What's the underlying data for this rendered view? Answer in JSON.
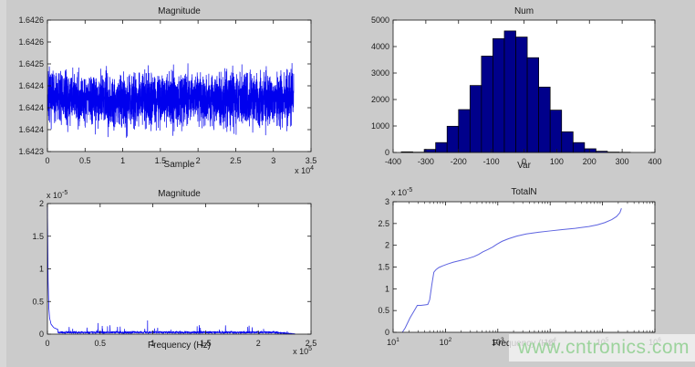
{
  "figure": {
    "watermark": {
      "text": "www.cntronics.com",
      "color": "#9cd39c"
    }
  },
  "colors": {
    "figure_bg": "#cbcbcb",
    "axes_bg": "#ffffff",
    "axis_line": "#1a1a1a",
    "tick_label": "#1a1a1a",
    "signal_blue": "#0000ee",
    "spectrum_blue": "#0000ee",
    "curve_blue": "#5d63e0",
    "hist_fill": "#00008b",
    "hist_edge": "#000000"
  },
  "chart_data": [
    {
      "id": "signal",
      "type": "noisy-line",
      "title": "Magnitude",
      "xlabel": "Sample",
      "x_exp_prefix": "x 10",
      "x_exp_value": "4",
      "xlim": [
        0,
        35000
      ],
      "xticks": [
        0,
        5000,
        10000,
        15000,
        20000,
        25000,
        30000,
        35000
      ],
      "xtick_labels": [
        "0",
        "0.5",
        "1",
        "1.5",
        "2",
        "2.5",
        "3",
        "3.5"
      ],
      "ylim": [
        1.6423,
        1.6426
      ],
      "yticks": [
        1.6423,
        1.64235,
        1.6424,
        1.64245,
        1.6425,
        1.64255,
        1.6426
      ],
      "ytick_labels": [
        "1.6423",
        "1.6424",
        "1.6424",
        "1.6424",
        "1.6425",
        "1.6426",
        "1.6426"
      ],
      "line_color": "#0000ee",
      "signal": {
        "x_end": 32700,
        "mean": 1.64242,
        "n_points": 3000,
        "seed": 7,
        "noise_amp": 9e-05,
        "wander_amps": [
          2.5e-06,
          2e-06
        ],
        "wander_freqs": [
          2.1,
          4.7
        ]
      }
    },
    {
      "id": "histogram",
      "type": "bar",
      "title": "Num",
      "xlabel": "Var",
      "xlim": [
        -400,
        400
      ],
      "xticks": [
        -400,
        -300,
        -200,
        -100,
        0,
        100,
        200,
        300,
        400
      ],
      "xtick_labels": [
        "-400",
        "-300",
        "-200",
        "-100",
        "0",
        "100",
        "200",
        "300",
        "400"
      ],
      "ylim": [
        0,
        5000
      ],
      "yticks": [
        0,
        1000,
        2000,
        3000,
        4000,
        5000
      ],
      "ytick_labels": [
        "0",
        "1000",
        "2000",
        "3000",
        "4000",
        "5000"
      ],
      "bar_fill": "#00008b",
      "bar_edge": "#000000",
      "bins": {
        "start": -375,
        "width": 35,
        "counts": [
          25,
          12,
          116,
          373,
          990,
          1620,
          2530,
          3640,
          4300,
          4590,
          4360,
          3580,
          2470,
          1600,
          780,
          373,
          140,
          47,
          15,
          8
        ]
      }
    },
    {
      "id": "spectrum",
      "type": "spectrum",
      "title": "Magnitude",
      "xlabel": "Frequency (Hz)",
      "x_exp_prefix": "x 10",
      "x_exp_value": "5",
      "y_exp_prefix": "x 10",
      "y_exp_value": "-5",
      "y_units": "1e-5",
      "xlim": [
        0,
        250000
      ],
      "xticks": [
        0,
        50000,
        100000,
        150000,
        200000,
        250000
      ],
      "xtick_labels": [
        "0",
        "0.5",
        "1",
        "1.5",
        "2",
        "2.5"
      ],
      "ylim": [
        0,
        2
      ],
      "yticks": [
        0,
        0.5,
        1,
        1.5,
        2
      ],
      "ytick_labels": [
        "0",
        "0.5",
        "1",
        "1.5",
        "2"
      ],
      "line_color": "#0000ee",
      "spectrum": {
        "seed": 11,
        "n_points": 1400,
        "x_end": 235000,
        "floor": 0.03,
        "dc_points": [
          [
            0,
            2.0
          ],
          [
            300,
            1.5
          ],
          [
            700,
            0.8
          ],
          [
            1200,
            0.45
          ],
          [
            2000,
            0.25
          ],
          [
            3500,
            0.15
          ],
          [
            6000,
            0.1
          ],
          [
            10000,
            0.07
          ]
        ],
        "spikes": [
          [
            48000,
            0.17
          ],
          [
            57000,
            0.12
          ],
          [
            73000,
            0.08
          ],
          [
            95000,
            0.21
          ],
          [
            117000,
            0.07
          ],
          [
            142000,
            0.12
          ],
          [
            163000,
            0.07
          ],
          [
            190000,
            0.11
          ],
          [
            205000,
            0.08
          ]
        ]
      }
    },
    {
      "id": "cumulative-noise",
      "type": "line-log",
      "title": "TotalN",
      "xlabel": "Frequency (Hz)",
      "xscale": "log",
      "y_exp_prefix": "x 10",
      "y_exp_value": "-5",
      "y_units": "1e-5",
      "xlim": [
        10,
        1000000
      ],
      "xtick_exponents": [
        "1",
        "2",
        "3",
        "4",
        "5",
        "6"
      ],
      "xticks": [
        10,
        100,
        1000,
        10000,
        100000,
        1000000
      ],
      "ylim": [
        0,
        3
      ],
      "yticks": [
        0,
        0.5,
        1,
        1.5,
        2,
        2.5,
        3
      ],
      "ytick_labels": [
        "0",
        "0.5",
        "1",
        "1.5",
        "2",
        "2.5",
        "3"
      ],
      "line_color": "#5d63e0",
      "points": [
        [
          15,
          0
        ],
        [
          17,
          0.1
        ],
        [
          21,
          0.33
        ],
        [
          26,
          0.52
        ],
        [
          29,
          0.62
        ],
        [
          34,
          0.62
        ],
        [
          40,
          0.63
        ],
        [
          46,
          0.64
        ],
        [
          50,
          0.75
        ],
        [
          55,
          1.1
        ],
        [
          60,
          1.38
        ],
        [
          66,
          1.44
        ],
        [
          75,
          1.49
        ],
        [
          90,
          1.53
        ],
        [
          110,
          1.57
        ],
        [
          140,
          1.61
        ],
        [
          190,
          1.65
        ],
        [
          260,
          1.69
        ],
        [
          350,
          1.74
        ],
        [
          430,
          1.79
        ],
        [
          520,
          1.85
        ],
        [
          640,
          1.9
        ],
        [
          800,
          1.96
        ],
        [
          950,
          2.02
        ],
        [
          1200,
          2.09
        ],
        [
          1600,
          2.15
        ],
        [
          2300,
          2.21
        ],
        [
          3500,
          2.26
        ],
        [
          6000,
          2.3
        ],
        [
          10000,
          2.33
        ],
        [
          17000,
          2.36
        ],
        [
          30000,
          2.39
        ],
        [
          55000,
          2.43
        ],
        [
          80000,
          2.47
        ],
        [
          110000,
          2.52
        ],
        [
          150000,
          2.59
        ],
        [
          185000,
          2.66
        ],
        [
          215000,
          2.75
        ],
        [
          230000,
          2.85
        ]
      ]
    }
  ]
}
